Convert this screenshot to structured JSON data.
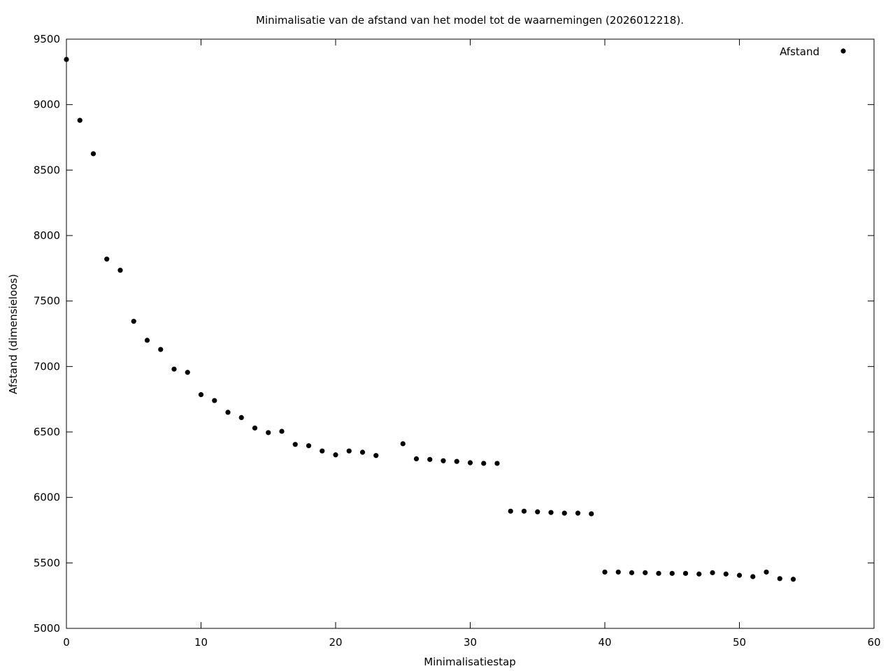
{
  "chart_data": {
    "type": "scatter",
    "title": "Minimalisatie van de afstand van het model tot de waarnemingen (2026012218).",
    "xlabel": "Minimalisatiestap",
    "ylabel": "Afstand (dimensieloos)",
    "xlim": [
      0,
      60
    ],
    "ylim": [
      5000,
      9500
    ],
    "xticks": [
      "0",
      "10",
      "20",
      "30",
      "40",
      "50",
      "60"
    ],
    "yticks": [
      "5000",
      "5500",
      "6000",
      "6500",
      "7000",
      "7500",
      "8000",
      "8500",
      "9000",
      "9500"
    ],
    "grid": false,
    "legend_position": "top-right",
    "series": [
      {
        "name": "Afstand",
        "color": "#000000",
        "x": [
          0,
          1,
          2,
          3,
          4,
          5,
          6,
          7,
          8,
          9,
          10,
          11,
          12,
          13,
          14,
          15,
          16,
          17,
          18,
          19,
          20,
          21,
          22,
          23,
          25,
          26,
          27,
          28,
          29,
          30,
          31,
          32,
          33,
          34,
          35,
          36,
          37,
          38,
          39,
          40,
          41,
          42,
          43,
          44,
          45,
          46,
          47,
          48,
          49,
          50,
          51,
          52,
          53,
          54
        ],
        "y": [
          9345,
          8880,
          8625,
          7820,
          7735,
          7345,
          7200,
          7130,
          6980,
          6955,
          6785,
          6740,
          6650,
          6610,
          6530,
          6495,
          6505,
          6405,
          6395,
          6355,
          6325,
          6355,
          6345,
          6320,
          6410,
          6295,
          6290,
          6280,
          6275,
          6265,
          6260,
          6260,
          5895,
          5895,
          5890,
          5885,
          5880,
          5880,
          5875,
          5430,
          5430,
          5425,
          5425,
          5420,
          5420,
          5420,
          5415,
          5425,
          5415,
          5405,
          5395,
          5430,
          5380,
          5375
        ]
      }
    ]
  }
}
